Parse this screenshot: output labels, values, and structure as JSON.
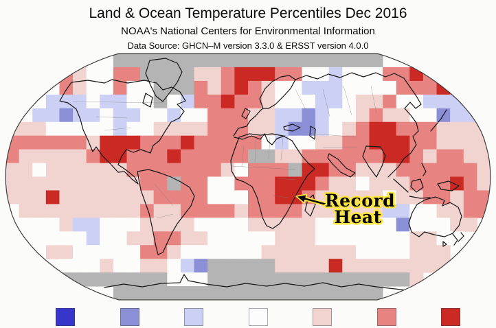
{
  "header": {
    "title": "Land & Ocean Temperature Percentiles Dec 2016",
    "subtitle": "NOAA's National Centers for Environmental Information",
    "source_line": "Data Source: GHCN–M version 3.3.0 & ERSST version 4.0.0"
  },
  "annotation": {
    "line1": "Record",
    "line2": "Heat",
    "text_color": "#050505",
    "outline_color": "#ffe63e"
  },
  "map": {
    "no_data_color": "#b4b4b4",
    "border_color": "#3c3c3c",
    "coastline_color": "#151515",
    "country_border_color": "#777777",
    "background_color": "#fcfcfb"
  },
  "legend": {
    "swatch_colors": [
      "#3835cb",
      "#8b8fd6",
      "#ccd0f4",
      "#fcfcfc",
      "#f1d4d0",
      "#e78381",
      "#cb2a24"
    ]
  },
  "chart_data": {
    "type": "heatmap",
    "title": "Land & Ocean Temperature Percentiles Dec 2016",
    "subtitle": "NOAA's National Centers for Environmental Information",
    "data_source": "GHCN–M version 3.3.0 & ERSST version 4.0.0",
    "projection": "robinson",
    "legend_position": "bottom",
    "legend_scale_colors": [
      "#3835cb",
      "#8b8fd6",
      "#ccd0f4",
      "#fcfcfc",
      "#f1d4d0",
      "#e78381",
      "#cb2a24"
    ],
    "grid_cols": 36,
    "grid_rows": 18,
    "palette": {
      "G": "#b4b4b4",
      "b": "#8b8fd6",
      "l": "#ccd0f4",
      "w": "#fcfcfb",
      "p": "#f1d4d0",
      "r": "#e78381",
      "R": "#cb2a24"
    },
    "palette_meaning": {
      "G": "no data (gray)",
      "b": "much cooler than average (medium blue)",
      "l": "cooler than average (light blue)",
      "w": "near average (white)",
      "p": "warmer than average (light pink)",
      "r": "much warmer than average (medium red)",
      "R": "record warmest (dark red)"
    },
    "rows_data": [
      "........GGGGGGGGGGGGGGGGGGGG........",
      "...wrpwwrrGGGGpprRRRrrwwlwwwrrRrr...",
      ".ppwrpwwrwwGGGrprRrpwwlllwwwwrrrRrp.",
      "pwwlllwllwwGwlrrRrrpwwwllwpprwwllllp",
      "wwllbllwllwwlwwrrrppllblwwprppwwbllp",
      "pppwwwwwlwwpppprrrpplbblwprRRrrrpppp",
      "rrrrrrpRRRrrrRrrrrrwlwwpprrRRRrrpppp",
      "rppppprRRrrrRrrrrrGGpprrrrrrRRrprrpp",
      "ppwpppppprrrrrrrpwrrrGRRrrppprrrrrrp",
      "pppppppppprrGrrwwrrrRRRrppwppprrrRrp",
      "pppRppppppprrrrwwwrrRRrpppppwpprrprr",
      "wppppppppprpprrrrprrrrppppppllwwpprr",
      ".wwwpllwwwppppwwwwpppppwwwwwwbwwwpp.",
      "..wwwwlwwpprrppwwwwwpppwwwwwwwppww..",
      "...ppwwwwwrrpwwwwwwpppppppwwwwppp...",
      "....wwwpwwppwlbGGGGGppppRpppppppp...",
      "....GGGGGGGGwwwGGGGGGGGGGGGGGGp.....",
      "........GGGGGGGGGGGGGGGGGGGG........"
    ],
    "annotation": {
      "text": "Record Heat",
      "target": "East Africa dark-red record cells"
    }
  }
}
